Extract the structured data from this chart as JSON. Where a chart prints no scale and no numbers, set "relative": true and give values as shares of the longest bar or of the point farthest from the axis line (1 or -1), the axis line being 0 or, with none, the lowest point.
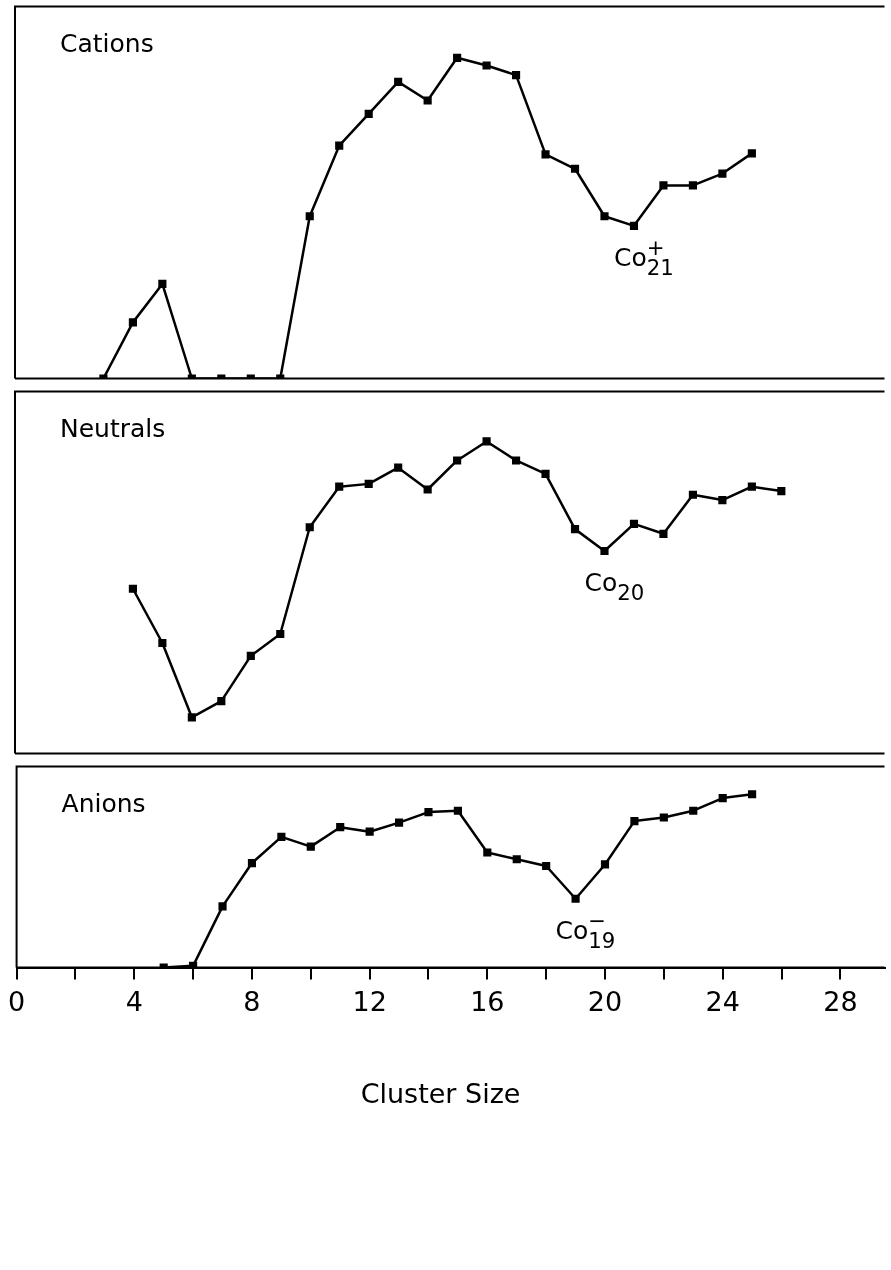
{
  "chart_data": [
    {
      "type": "line",
      "title": "Cations",
      "relative": true,
      "x": [
        3,
        4,
        5,
        6,
        7,
        8,
        9,
        10,
        11,
        12,
        13,
        14,
        15,
        16,
        17,
        18,
        19,
        20,
        21,
        22,
        23,
        24,
        25
      ],
      "series": [
        {
          "color": "#000000",
          "values": [
            0,
            0.175,
            0.295,
            0,
            0,
            0,
            0,
            0.506,
            0.726,
            0.825,
            0.925,
            0.867,
            1,
            0.976,
            0.946,
            0.699,
            0.654,
            0.506,
            0.476,
            0.602,
            0.602,
            0.639,
            0.702
          ]
        }
      ],
      "annotations": [
        {
          "text": "Co$^{+}$$_{21}$",
          "x": 21,
          "y": 0.476
        }
      ],
      "xlim": [
        0,
        29.5
      ],
      "tick_labels": false,
      "marker": "square",
      "grid": false,
      "legend": false
    },
    {
      "type": "line",
      "title": "Neutrals",
      "relative": true,
      "x": [
        4,
        5,
        6,
        7,
        8,
        9,
        10,
        11,
        12,
        13,
        14,
        15,
        16,
        17,
        18,
        19,
        20,
        21,
        22,
        23,
        24,
        25,
        26
      ],
      "series": [
        {
          "color": "#000000",
          "values": [
            0.528,
            0.354,
            0.116,
            0.168,
            0.313,
            0.383,
            0.725,
            0.855,
            0.864,
            0.916,
            0.846,
            0.939,
            1,
            0.939,
            0.896,
            0.719,
            0.649,
            0.736,
            0.704,
            0.829,
            0.812,
            0.855,
            0.841
          ]
        }
      ],
      "annotations": [
        {
          "text": "Co$_{20}$",
          "x": 20,
          "y": 0.649
        }
      ],
      "xlim": [
        0,
        29.5
      ],
      "tick_labels": false,
      "marker": "square",
      "grid": false,
      "legend": false
    },
    {
      "type": "line",
      "title": "Anions",
      "relative": true,
      "x": [
        5,
        6,
        7,
        8,
        9,
        10,
        11,
        12,
        13,
        14,
        15,
        16,
        17,
        18,
        19,
        20,
        21,
        22,
        23,
        24,
        25
      ],
      "series": [
        {
          "color": "#000000",
          "values": [
            0,
            0.01,
            0.353,
            0.603,
            0.754,
            0.698,
            0.81,
            0.784,
            0.836,
            0.897,
            0.905,
            0.664,
            0.625,
            0.586,
            0.397,
            0.595,
            0.845,
            0.866,
            0.905,
            0.978,
            1
          ]
        }
      ],
      "annotations": [
        {
          "text": "Co$^{−}$$_{19}$",
          "x": 19,
          "y": 0.397
        }
      ],
      "xlabel": "Cluster Size",
      "xlim": [
        0,
        29.5
      ],
      "xticks": [
        0,
        {
          "value": 2,
          "label": null
        },
        4,
        {
          "value": 6,
          "label": null
        },
        8,
        {
          "value": 10,
          "label": null
        },
        12,
        {
          "value": 14,
          "label": null
        },
        16,
        {
          "value": 18,
          "label": null
        },
        20,
        {
          "value": 22,
          "label": null
        },
        24,
        {
          "value": 26,
          "label": null
        },
        28
      ],
      "tick_labels": "x",
      "marker": "square",
      "grid": false,
      "legend": false
    }
  ]
}
